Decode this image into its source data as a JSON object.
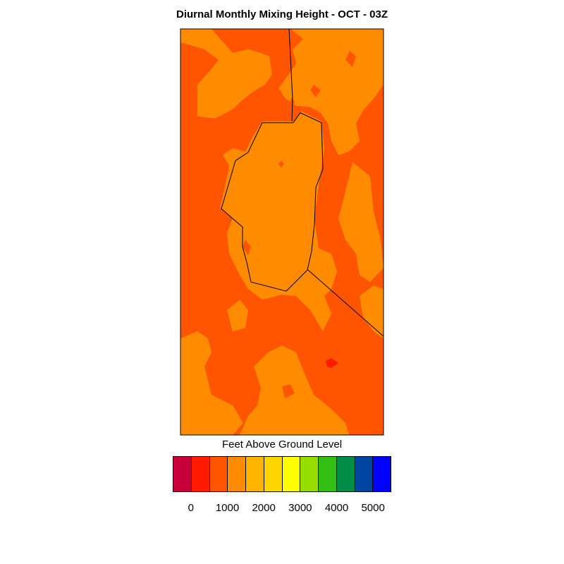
{
  "title": "Diurnal Monthly Mixing Height - OCT - 03Z",
  "legend": {
    "label": "Feet Above Ground Level",
    "colors": [
      "#c8003c",
      "#ff1a00",
      "#ff5500",
      "#ff8c00",
      "#ffb400",
      "#ffd700",
      "#ffff00",
      "#96dc00",
      "#32be14",
      "#008c46",
      "#0046a0",
      "#0000ff"
    ],
    "ticks": [
      "0",
      "1000",
      "2000",
      "3000",
      "4000",
      "5000"
    ]
  },
  "fills": {
    "dark_orange": "#ff5500",
    "orange": "#ff8c00",
    "red": "#ff1a00"
  }
}
